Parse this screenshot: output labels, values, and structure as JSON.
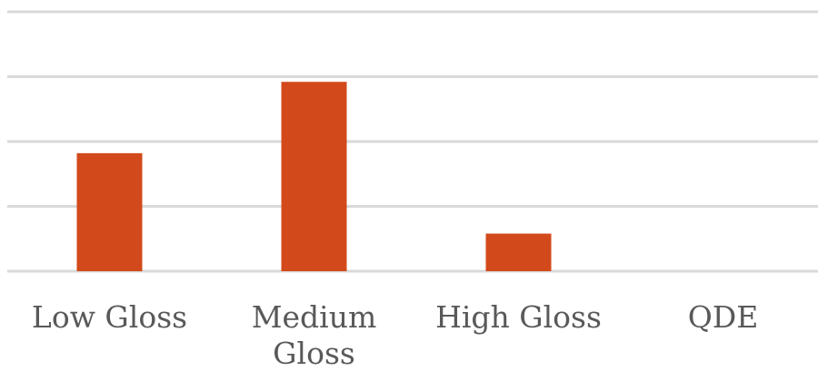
{
  "colors": {
    "bar": "#d24a1b",
    "grid": "#d9d9d9",
    "label": "#595959"
  },
  "chart_data": {
    "type": "bar",
    "categories": [
      [
        "Low Gloss"
      ],
      [
        "Medium",
        "Gloss"
      ],
      [
        "High Gloss"
      ],
      [
        "QDE"
      ]
    ],
    "values": [
      1.82,
      2.92,
      0.58,
      0
    ],
    "ylim": [
      0,
      4
    ],
    "gridlines": [
      0,
      1,
      2,
      3,
      4
    ],
    "grid": true,
    "legend": false
  }
}
